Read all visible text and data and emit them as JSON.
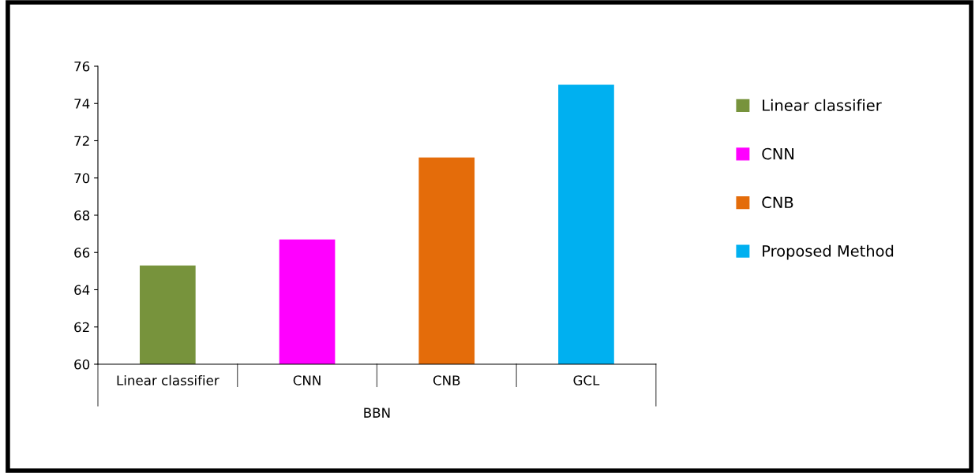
{
  "chart_data": {
    "type": "bar",
    "xlabel": "BBN",
    "categories": [
      "Linear classifier",
      "CNN",
      "CNB",
      "GCL"
    ],
    "series": [
      {
        "name": "Linear classifier",
        "color": "#77933c",
        "values": [
          65.3,
          null,
          null,
          null
        ]
      },
      {
        "name": "CNN",
        "color": "#ff00ff",
        "values": [
          null,
          66.7,
          null,
          null
        ]
      },
      {
        "name": "CNB",
        "color": "#e46c0a",
        "values": [
          null,
          null,
          71.1,
          null
        ]
      },
      {
        "name": "Proposed Method",
        "color": "#00b0f0",
        "values": [
          null,
          null,
          null,
          75.0
        ]
      }
    ],
    "ylim": [
      60,
      76
    ],
    "yticks": [
      60,
      62,
      64,
      66,
      68,
      70,
      72,
      74,
      76
    ],
    "grid": false,
    "legend": "right"
  }
}
